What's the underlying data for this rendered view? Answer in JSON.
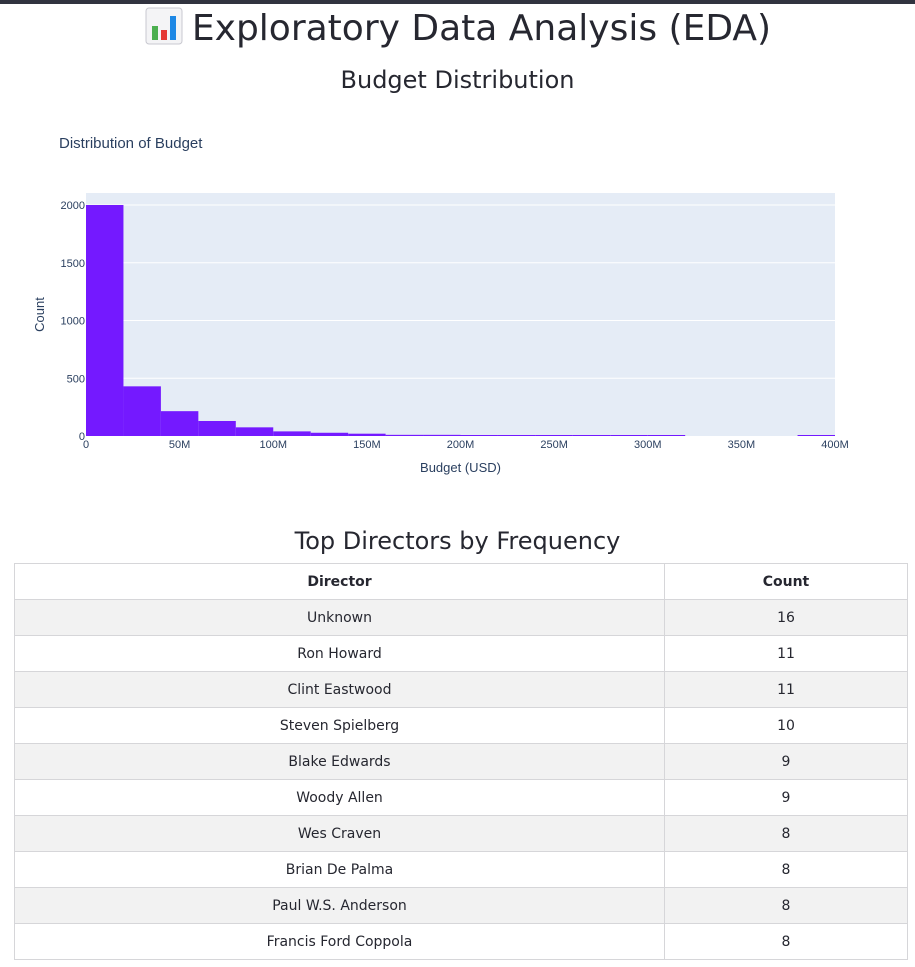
{
  "page": {
    "title_icon": "bar-chart-icon",
    "title": "Exploratory Data Analysis (EDA)"
  },
  "budget_section": {
    "heading": "Budget Distribution"
  },
  "chart_data": {
    "type": "bar",
    "title": "Distribution of Budget",
    "xlabel": "Budget (USD)",
    "ylabel": "Count",
    "bin_width": 20000000,
    "bins": [
      {
        "start": 0,
        "end": 20000000,
        "count": 2000
      },
      {
        "start": 20000000,
        "end": 40000000,
        "count": 430
      },
      {
        "start": 40000000,
        "end": 60000000,
        "count": 215
      },
      {
        "start": 60000000,
        "end": 80000000,
        "count": 130
      },
      {
        "start": 80000000,
        "end": 100000000,
        "count": 75
      },
      {
        "start": 100000000,
        "end": 120000000,
        "count": 40
      },
      {
        "start": 120000000,
        "end": 140000000,
        "count": 28
      },
      {
        "start": 140000000,
        "end": 160000000,
        "count": 20
      },
      {
        "start": 160000000,
        "end": 180000000,
        "count": 10
      },
      {
        "start": 180000000,
        "end": 200000000,
        "count": 10
      },
      {
        "start": 200000000,
        "end": 220000000,
        "count": 8
      },
      {
        "start": 220000000,
        "end": 240000000,
        "count": 3
      },
      {
        "start": 240000000,
        "end": 260000000,
        "count": 3
      },
      {
        "start": 260000000,
        "end": 280000000,
        "count": 3
      },
      {
        "start": 280000000,
        "end": 300000000,
        "count": 3
      },
      {
        "start": 300000000,
        "end": 320000000,
        "count": 3
      },
      {
        "start": 320000000,
        "end": 340000000,
        "count": 0
      },
      {
        "start": 340000000,
        "end": 360000000,
        "count": 0
      },
      {
        "start": 360000000,
        "end": 380000000,
        "count": 0
      },
      {
        "start": 380000000,
        "end": 400000000,
        "count": 2
      }
    ],
    "xlim": [
      0,
      400000000
    ],
    "ylim": [
      0,
      2100
    ],
    "xticks": [
      {
        "value": 0,
        "label": "0"
      },
      {
        "value": 50000000,
        "label": "50M"
      },
      {
        "value": 100000000,
        "label": "100M"
      },
      {
        "value": 150000000,
        "label": "150M"
      },
      {
        "value": 200000000,
        "label": "200M"
      },
      {
        "value": 250000000,
        "label": "250M"
      },
      {
        "value": 300000000,
        "label": "300M"
      },
      {
        "value": 350000000,
        "label": "350M"
      },
      {
        "value": 400000000,
        "label": "400M"
      }
    ],
    "yticks": [
      {
        "value": 0,
        "label": "0"
      },
      {
        "value": 500,
        "label": "500"
      },
      {
        "value": 1000,
        "label": "1000"
      },
      {
        "value": 1500,
        "label": "1500"
      },
      {
        "value": 2000,
        "label": "2000"
      }
    ],
    "grid": true,
    "colors": {
      "bar": "#7419ff",
      "plot_bg": "#e5ecf6",
      "text": "#2a3f5f",
      "grid": "#ffffff"
    }
  },
  "directors_section": {
    "heading": "Top Directors by Frequency",
    "columns": [
      "Director",
      "Count"
    ],
    "rows": [
      {
        "director": "Unknown",
        "count": "16"
      },
      {
        "director": "Ron Howard",
        "count": "11"
      },
      {
        "director": "Clint Eastwood",
        "count": "11"
      },
      {
        "director": "Steven Spielberg",
        "count": "10"
      },
      {
        "director": "Blake Edwards",
        "count": "9"
      },
      {
        "director": "Woody Allen",
        "count": "9"
      },
      {
        "director": "Wes Craven",
        "count": "8"
      },
      {
        "director": "Brian De Palma",
        "count": "8"
      },
      {
        "director": "Paul W.S. Anderson",
        "count": "8"
      },
      {
        "director": "Francis Ford Coppola",
        "count": "8"
      }
    ]
  }
}
